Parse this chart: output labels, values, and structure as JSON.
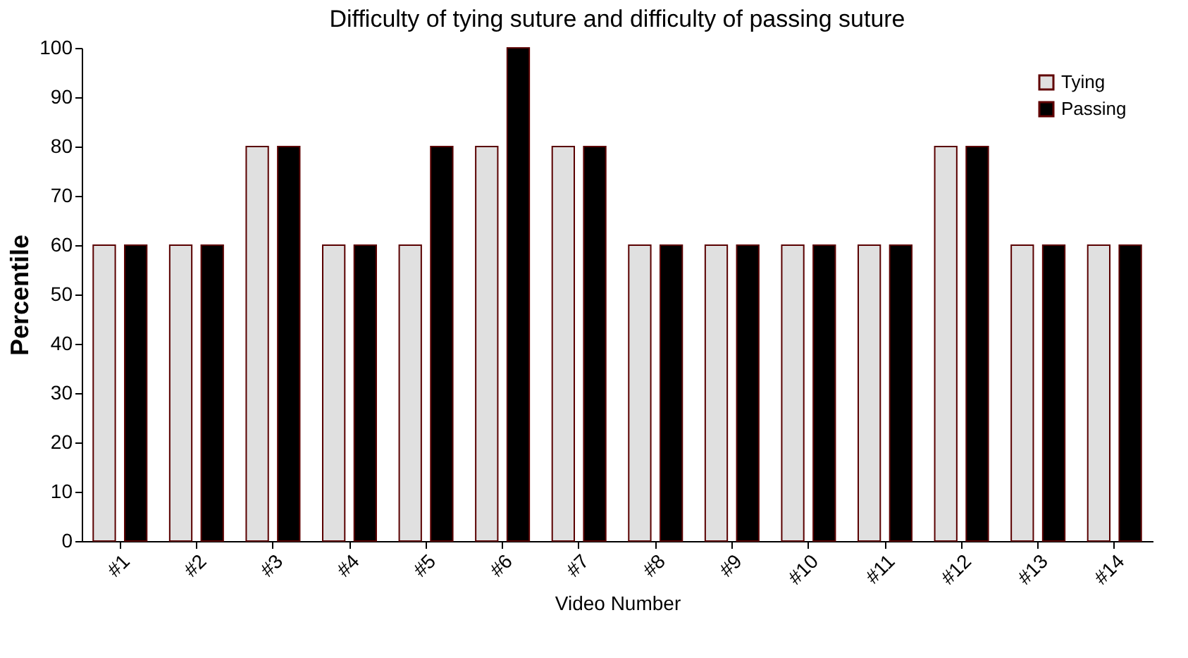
{
  "chart_data": {
    "type": "bar",
    "title": "Difficulty of tying suture and difficulty of passing suture",
    "xlabel": "Video Number",
    "ylabel": "Percentile",
    "categories": [
      "#1",
      "#2",
      "#3",
      "#4",
      "#5",
      "#6",
      "#7",
      "#8",
      "#9",
      "#10",
      "#11",
      "#12",
      "#13",
      "#14"
    ],
    "series": [
      {
        "name": "Tying",
        "color": "#e0e0e0",
        "values": [
          60,
          60,
          80,
          60,
          60,
          80,
          80,
          60,
          60,
          60,
          60,
          80,
          60,
          60
        ]
      },
      {
        "name": "Passing",
        "color": "#000000",
        "values": [
          60,
          60,
          80,
          60,
          80,
          100,
          80,
          60,
          60,
          60,
          60,
          80,
          60,
          60
        ]
      }
    ],
    "ylim": [
      0,
      100
    ],
    "yticks": [
      0,
      10,
      20,
      30,
      40,
      50,
      60,
      70,
      80,
      90,
      100
    ],
    "grid": false,
    "legend": "top right"
  }
}
